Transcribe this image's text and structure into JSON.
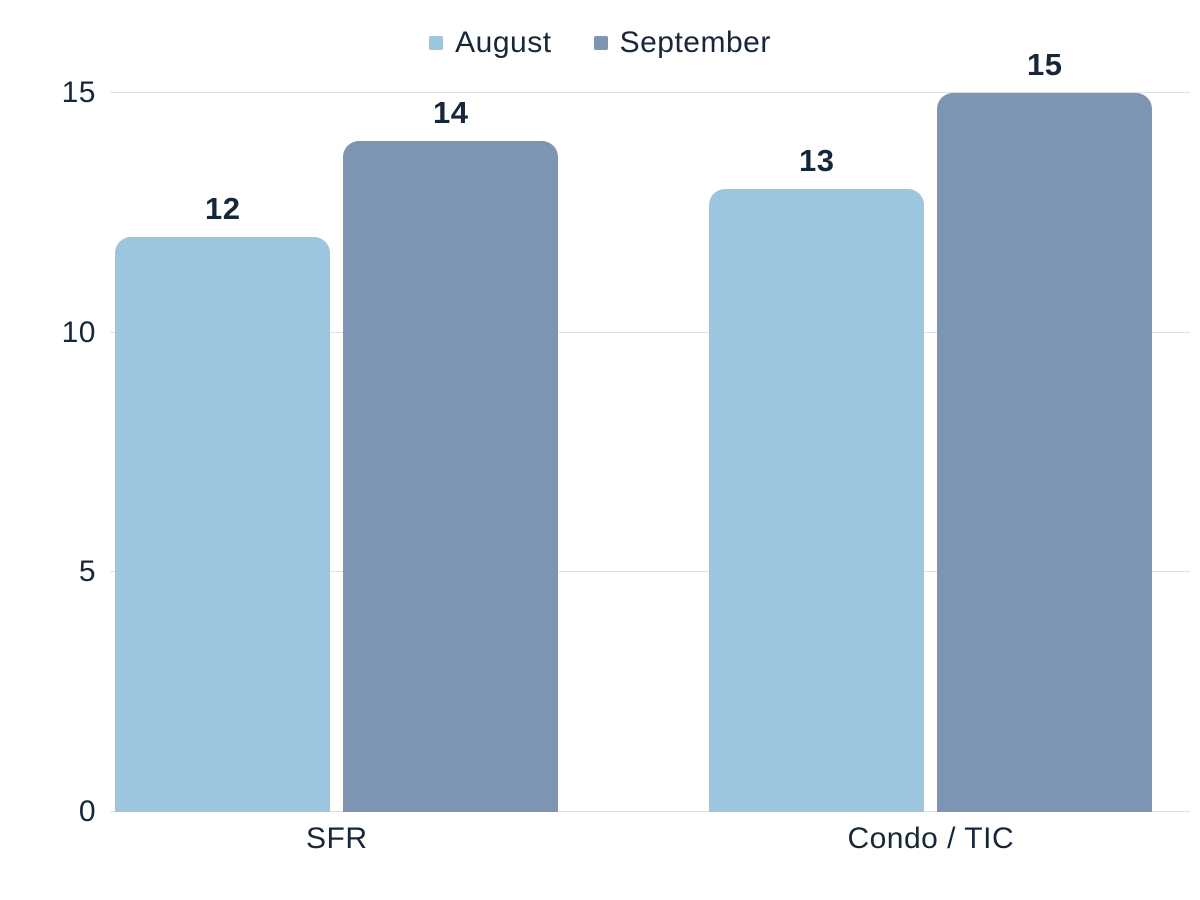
{
  "chart_data": {
    "type": "bar",
    "title": "",
    "xlabel": "",
    "ylabel": "",
    "categories": [
      "SFR",
      "Condo / TIC"
    ],
    "series": [
      {
        "name": "August",
        "color": "#9cc5de",
        "values": [
          12,
          13
        ]
      },
      {
        "name": "September",
        "color": "#7e94b3",
        "values": [
          14,
          15
        ]
      }
    ],
    "ylim": [
      0,
      15
    ],
    "yticks": [
      0,
      5,
      10,
      15
    ],
    "grid": true,
    "legend_position": "top-center",
    "colors": {
      "grid": "#dde0e6",
      "text": "#17273a",
      "background": "#ffffff"
    }
  }
}
